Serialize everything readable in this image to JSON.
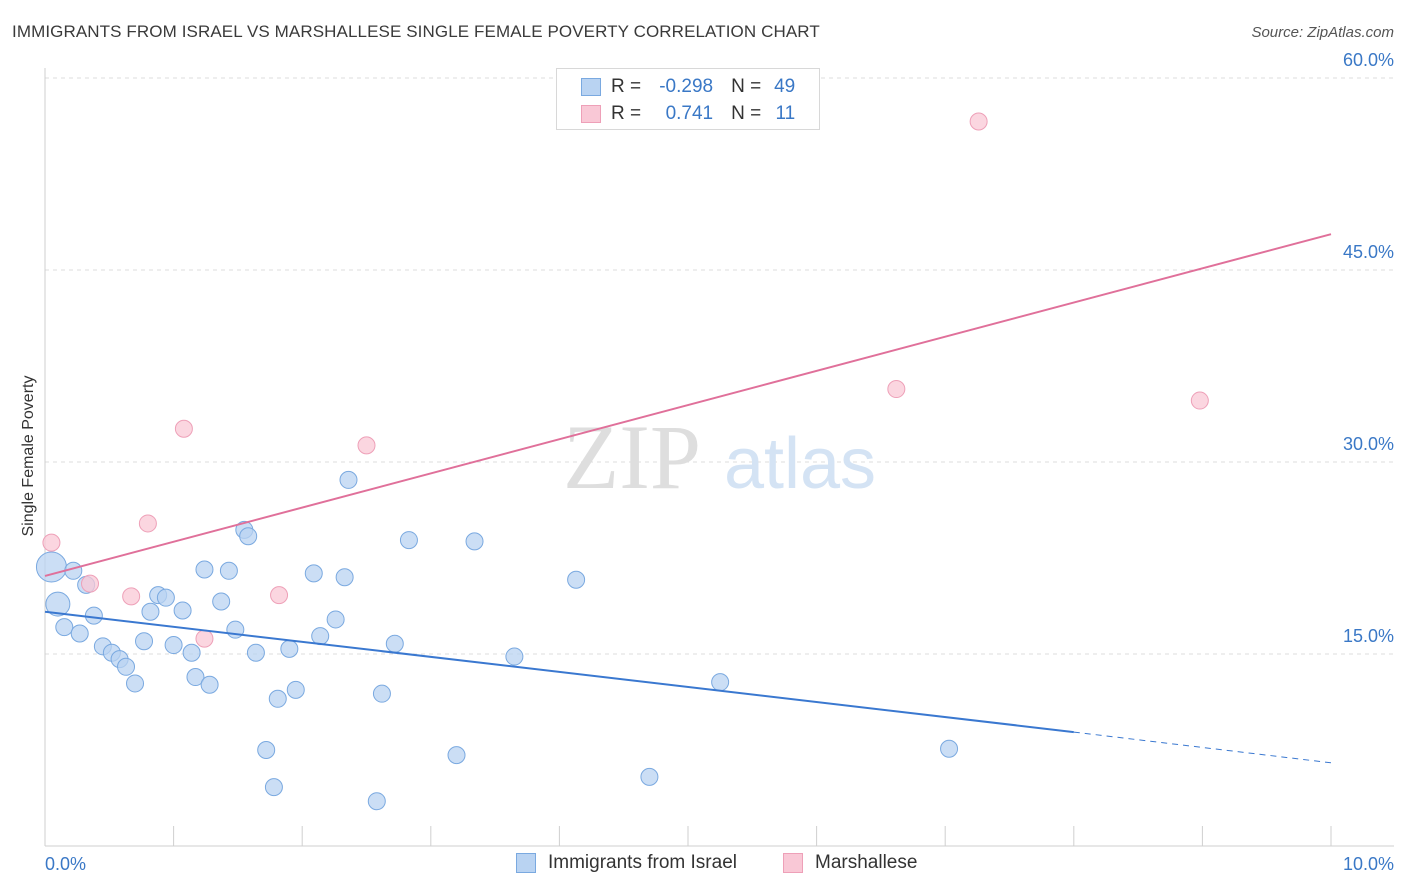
{
  "title": "IMMIGRANTS FROM ISRAEL VS MARSHALLESE SINGLE FEMALE POVERTY CORRELATION CHART",
  "source": "Source: ZipAtlas.com",
  "watermark": {
    "zip": "ZIP",
    "atlas": "atlas"
  },
  "legend": {
    "rows": [
      {
        "r_label": "R =",
        "r_value": "-0.298",
        "n_label": "N =",
        "n_value": "49"
      },
      {
        "r_label": "R =",
        "r_value": "0.741",
        "n_label": "N =",
        "n_value": "11"
      }
    ]
  },
  "bottom_legend": {
    "israel": "Immigrants from Israel",
    "marshallese": "Marshallese"
  },
  "chart_data": {
    "type": "scatter",
    "title": "IMMIGRANTS FROM ISRAEL VS MARSHALLESE SINGLE FEMALE POVERTY CORRELATION CHART",
    "xlabel": "",
    "ylabel": "Single Female Poverty",
    "xlim": [
      0,
      10
    ],
    "ylim": [
      0,
      60
    ],
    "x_tick_labels": [
      "0.0%",
      "10.0%"
    ],
    "y_ticks": [
      15,
      30,
      45,
      60
    ],
    "y_tick_labels": [
      "15.0%",
      "30.0%",
      "45.0%",
      "60.0%"
    ],
    "grid": true,
    "colors": {
      "israel_fill": "#b9d3f2",
      "israel_stroke": "#7aa9e0",
      "israel_line": "#3a78d0",
      "marsh_fill": "#f9c8d6",
      "marsh_stroke": "#eea0b8",
      "marsh_line": "#e0709a",
      "tick_label": "#3a78c6",
      "grid": "#dcdcdc"
    },
    "series": [
      {
        "name": "Immigrants from Israel",
        "r": -0.298,
        "n": 49,
        "points": [
          [
            0.05,
            21.8
          ],
          [
            0.1,
            18.9
          ],
          [
            0.15,
            17.1
          ],
          [
            0.22,
            21.5
          ],
          [
            0.27,
            16.6
          ],
          [
            0.32,
            20.4
          ],
          [
            0.38,
            18.0
          ],
          [
            0.45,
            15.6
          ],
          [
            0.52,
            15.1
          ],
          [
            0.58,
            14.6
          ],
          [
            0.63,
            14.0
          ],
          [
            0.7,
            12.7
          ],
          [
            0.77,
            16.0
          ],
          [
            0.82,
            18.3
          ],
          [
            0.88,
            19.6
          ],
          [
            0.94,
            19.4
          ],
          [
            1.0,
            15.7
          ],
          [
            1.07,
            18.4
          ],
          [
            1.14,
            15.1
          ],
          [
            1.17,
            13.2
          ],
          [
            1.24,
            21.6
          ],
          [
            1.28,
            12.6
          ],
          [
            1.37,
            19.1
          ],
          [
            1.43,
            21.5
          ],
          [
            1.48,
            16.9
          ],
          [
            1.55,
            24.7
          ],
          [
            1.58,
            24.2
          ],
          [
            1.64,
            15.1
          ],
          [
            1.72,
            7.5
          ],
          [
            1.78,
            4.6
          ],
          [
            1.81,
            11.5
          ],
          [
            1.9,
            15.4
          ],
          [
            1.95,
            12.2
          ],
          [
            2.09,
            21.3
          ],
          [
            2.14,
            16.4
          ],
          [
            2.26,
            17.7
          ],
          [
            2.33,
            21.0
          ],
          [
            2.36,
            28.6
          ],
          [
            2.58,
            3.5
          ],
          [
            2.62,
            11.9
          ],
          [
            2.72,
            15.8
          ],
          [
            2.83,
            23.9
          ],
          [
            3.2,
            7.1
          ],
          [
            3.34,
            23.8
          ],
          [
            3.65,
            14.8
          ],
          [
            4.13,
            20.8
          ],
          [
            4.7,
            5.4
          ],
          [
            5.25,
            12.8
          ],
          [
            7.03,
            7.6
          ]
        ],
        "trend": {
          "x0": 0,
          "y0": 18.3,
          "x1": 8.0,
          "y1": 8.9,
          "dash_to_x": 10.0,
          "dash_to_y": 6.5
        }
      },
      {
        "name": "Marshallese",
        "r": 0.741,
        "n": 11,
        "points": [
          [
            0.05,
            23.7
          ],
          [
            0.35,
            20.5
          ],
          [
            0.67,
            19.5
          ],
          [
            0.8,
            25.2
          ],
          [
            1.08,
            32.6
          ],
          [
            1.24,
            16.2
          ],
          [
            1.82,
            19.6
          ],
          [
            2.5,
            31.3
          ],
          [
            6.62,
            35.7
          ],
          [
            7.26,
            56.6
          ],
          [
            8.98,
            34.8
          ]
        ],
        "trend": {
          "x0": 0,
          "y0": 21.1,
          "x1": 10.0,
          "y1": 47.8
        }
      }
    ]
  }
}
